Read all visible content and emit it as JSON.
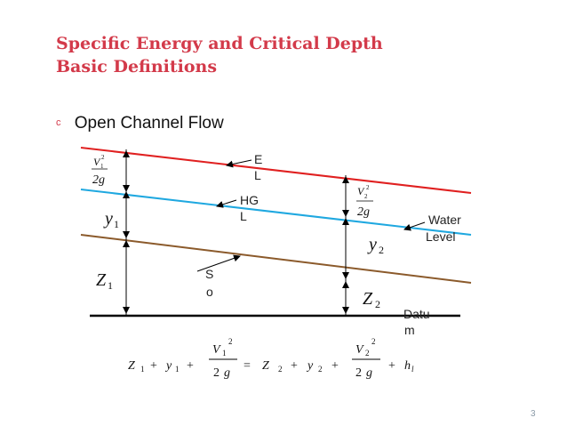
{
  "slide": {
    "title_line1": "Specific Energy and Critical Depth",
    "title_line2": "Basic Definitions",
    "bullet_glyph": "c",
    "bullet_text": "Open Channel Flow",
    "page_number": "3"
  },
  "diagram": {
    "labels": {
      "el_1": "E",
      "el_2": "L",
      "hgl_1": "HG",
      "hgl_2": "L",
      "so_1": "S",
      "so_2": "o",
      "water_1": "Water",
      "water_2": "Level",
      "datum_1": "Datu",
      "datum_2": "m"
    },
    "symbols": {
      "v1": "V",
      "v1_sub": "1",
      "v1_sup": "2",
      "g1": "2g",
      "v2": "V",
      "v2_sub": "2",
      "v2_sup": "2",
      "g2": "2g",
      "y1": "y",
      "y1_sub": "1",
      "y2": "y",
      "y2_sub": "2",
      "z1": "Z",
      "z1_sub": "1",
      "z2": "Z",
      "z2_sub": "2"
    },
    "colors": {
      "energy_line": "#e02020",
      "water_line": "#1fa8e0",
      "bed_line": "#8b5a2b",
      "datum": "#000000"
    }
  },
  "equation": {
    "z1": "Z",
    "z1_sub": "1",
    "plus1": "+",
    "y1": "y",
    "y1_sub": "1",
    "plus2": "+",
    "v1": "V",
    "v1_sub": "1",
    "v1_sup": "2",
    "den1": "2",
    "den1_g": "g",
    "eq": "=",
    "z2": "Z",
    "z2_sub": "2",
    "plus3": "+",
    "y2": "y",
    "y2_sub": "2",
    "plus4": "+",
    "v2": "V",
    "v2_sub": "2",
    "v2_sup": "2",
    "den2": "2",
    "den2_g": "g",
    "plus5": "+",
    "hl": "h",
    "hl_sub": "l"
  }
}
